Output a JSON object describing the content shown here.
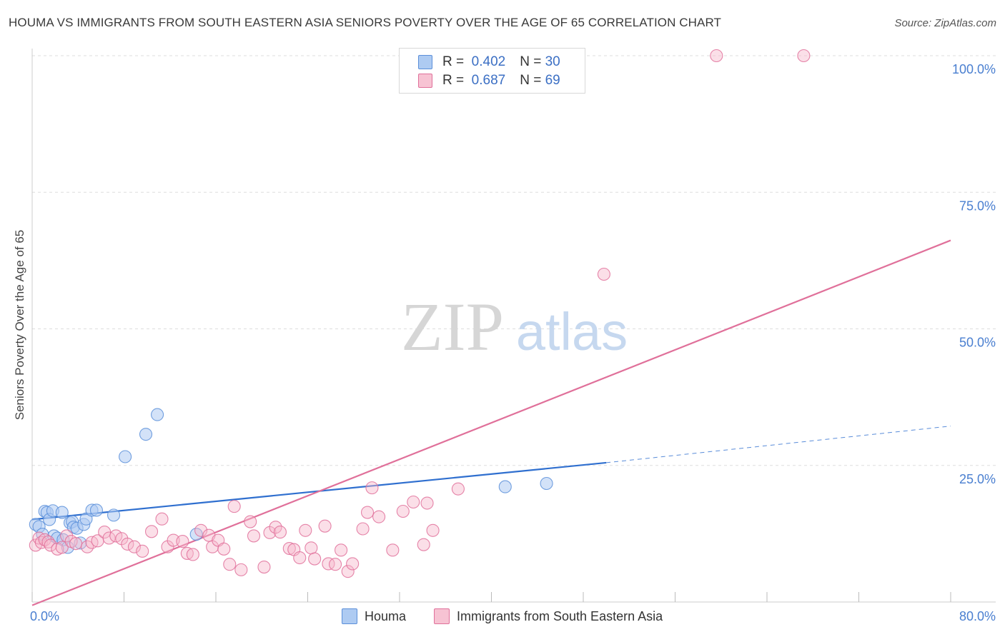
{
  "header": {
    "title": "HOUMA VS IMMIGRANTS FROM SOUTH EASTERN ASIA SENIORS POVERTY OVER THE AGE OF 65 CORRELATION CHART",
    "source": "Source: ZipAtlas.com"
  },
  "watermark": {
    "zip": "ZIP",
    "atlas": "atlas"
  },
  "legend": {
    "r_label": "R =",
    "n_label": "N =",
    "series": [
      {
        "name": "Houma",
        "r": "0.402",
        "n": "30",
        "color": "#5b8fd9",
        "fill": "#aecbf2"
      },
      {
        "name": "Immigrants from South Eastern Asia",
        "r": "0.687",
        "n": "69",
        "color": "#e0709a",
        "fill": "#f7b8cc"
      }
    ]
  },
  "chart_data": {
    "type": "scatter",
    "title": "HOUMA VS IMMIGRANTS FROM SOUTH EASTERN ASIA SENIORS POVERTY OVER THE AGE OF 65 CORRELATION CHART",
    "xlabel": "",
    "ylabel": "Seniors Poverty Over the Age of 65",
    "xlim": [
      0,
      80
    ],
    "ylim": [
      0,
      100
    ],
    "x_tick_labels": [
      "0.0%",
      "80.0%"
    ],
    "y_ticks": [
      25,
      50,
      75,
      100
    ],
    "y_tick_labels": [
      "25.0%",
      "50.0%",
      "75.0%",
      "100.0%"
    ],
    "grid": true,
    "series": [
      {
        "name": "Houma",
        "color": "#5b8fd9",
        "points": [
          [
            0.3,
            14.2
          ],
          [
            0.6,
            13.8
          ],
          [
            0.9,
            12.4
          ],
          [
            1.1,
            16.6
          ],
          [
            1.3,
            16.4
          ],
          [
            1.5,
            15.1
          ],
          [
            1.8,
            16.7
          ],
          [
            1.9,
            12.1
          ],
          [
            2.2,
            11.7
          ],
          [
            2.6,
            16.4
          ],
          [
            2.7,
            11.4
          ],
          [
            3.1,
            10.0
          ],
          [
            3.3,
            14.5
          ],
          [
            3.5,
            14.7
          ],
          [
            3.6,
            13.7
          ],
          [
            3.9,
            13.5
          ],
          [
            4.2,
            10.8
          ],
          [
            4.5,
            14.2
          ],
          [
            4.7,
            15.2
          ],
          [
            5.2,
            16.8
          ],
          [
            5.6,
            16.8
          ],
          [
            7.1,
            15.9
          ],
          [
            8.1,
            26.6
          ],
          [
            9.9,
            30.7
          ],
          [
            10.9,
            34.3
          ],
          [
            14.3,
            12.4
          ],
          [
            41.2,
            21.1
          ],
          [
            44.8,
            21.7
          ]
        ],
        "trend": {
          "x0": 0,
          "y0": 15.1,
          "x1": 50,
          "y1": 25.5,
          "dash_to_x": 80,
          "dash_to_y": 32.2
        }
      },
      {
        "name": "Immigrants from South Eastern Asia",
        "color": "#e0709a",
        "points": [
          [
            0.3,
            10.4
          ],
          [
            0.6,
            11.7
          ],
          [
            0.8,
            10.9
          ],
          [
            1.1,
            11.4
          ],
          [
            1.4,
            11.0
          ],
          [
            1.6,
            10.4
          ],
          [
            2.2,
            9.7
          ],
          [
            2.6,
            10.0
          ],
          [
            3.0,
            12.1
          ],
          [
            3.4,
            11.1
          ],
          [
            3.8,
            10.7
          ],
          [
            4.8,
            10.1
          ],
          [
            5.2,
            10.9
          ],
          [
            5.7,
            11.2
          ],
          [
            6.3,
            12.8
          ],
          [
            6.7,
            11.7
          ],
          [
            7.3,
            12.1
          ],
          [
            7.8,
            11.6
          ],
          [
            8.3,
            10.6
          ],
          [
            8.9,
            10.1
          ],
          [
            9.6,
            9.3
          ],
          [
            10.4,
            12.9
          ],
          [
            11.3,
            15.2
          ],
          [
            11.8,
            10.1
          ],
          [
            12.3,
            11.3
          ],
          [
            13.1,
            11.1
          ],
          [
            13.5,
            8.9
          ],
          [
            14.0,
            8.7
          ],
          [
            14.7,
            13.1
          ],
          [
            15.4,
            12.2
          ],
          [
            15.7,
            10.1
          ],
          [
            16.2,
            11.3
          ],
          [
            16.7,
            9.7
          ],
          [
            17.2,
            6.9
          ],
          [
            17.6,
            17.5
          ],
          [
            18.2,
            5.9
          ],
          [
            19.0,
            14.7
          ],
          [
            19.3,
            12.1
          ],
          [
            20.2,
            6.4
          ],
          [
            20.7,
            12.7
          ],
          [
            21.2,
            13.7
          ],
          [
            21.6,
            12.8
          ],
          [
            22.4,
            9.8
          ],
          [
            22.8,
            9.6
          ],
          [
            23.3,
            8.1
          ],
          [
            23.8,
            13.1
          ],
          [
            24.3,
            9.9
          ],
          [
            24.6,
            7.9
          ],
          [
            25.5,
            13.9
          ],
          [
            25.8,
            7.0
          ],
          [
            26.4,
            6.9
          ],
          [
            26.9,
            9.5
          ],
          [
            27.5,
            5.6
          ],
          [
            27.9,
            7.0
          ],
          [
            28.8,
            13.4
          ],
          [
            29.2,
            16.4
          ],
          [
            29.6,
            20.9
          ],
          [
            30.2,
            15.6
          ],
          [
            31.4,
            9.5
          ],
          [
            32.3,
            16.6
          ],
          [
            33.2,
            18.3
          ],
          [
            34.1,
            10.5
          ],
          [
            34.4,
            18.1
          ],
          [
            34.9,
            13.1
          ],
          [
            37.1,
            20.7
          ],
          [
            49.8,
            60.0
          ],
          [
            59.6,
            100.0
          ],
          [
            67.2,
            100.0
          ]
        ],
        "trend": {
          "x0": 0,
          "y0": -0.6,
          "x1": 80,
          "y1": 66.2
        }
      }
    ]
  }
}
